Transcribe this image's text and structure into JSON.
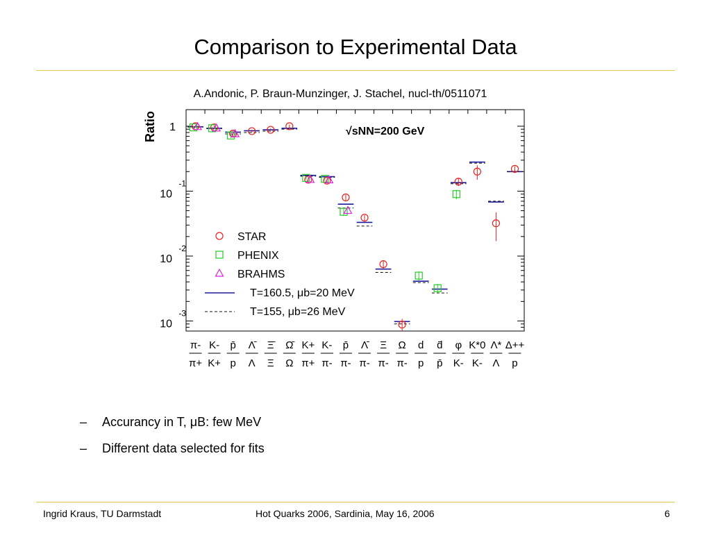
{
  "slide": {
    "title": "Comparison to Experimental Data",
    "citation": "A.Andonic, P. Braun-Munzinger, J. Stachel, nucl-th/0511071",
    "bullets": [
      {
        "dash": "–",
        "text": "Accurancy in T, μB: few MeV"
      },
      {
        "dash": "–",
        "text": "Different data selected for fits"
      }
    ]
  },
  "footer": {
    "author": "Ingrid Kraus, TU Darmstadt",
    "event": "Hot Quarks 2006, Sardinia, May 16, 2006",
    "page": "6"
  },
  "colors": {
    "STAR": "#e8201f",
    "PHENIX": "#22cc22",
    "BRAHMS": "#dd22dd",
    "fit_solid": "#1a1a9c",
    "fit_dashed": "#111111",
    "rule": "#e8c84a"
  },
  "chart_data": {
    "type": "scatter",
    "ylabel": "Ratio",
    "yscale": "log",
    "ylim": [
      0.0007,
      1.8
    ],
    "y_ticks": [
      {
        "base": "1",
        "exp": ""
      },
      {
        "base": "10",
        "exp": "-1"
      },
      {
        "base": "10",
        "exp": "-2"
      },
      {
        "base": "10",
        "exp": "-3"
      }
    ],
    "annotation": "√sNN=200 GeV",
    "grid": false,
    "legend_position": "bottom-left",
    "legend": [
      {
        "label": "STAR",
        "marker": "circle"
      },
      {
        "label": "PHENIX",
        "marker": "square"
      },
      {
        "label": "BRAHMS",
        "marker": "triangle"
      },
      {
        "label": "T=160.5, μb=20 MeV",
        "line": "solid"
      },
      {
        "label": "T=155, μb=26 MeV",
        "line": "dashed"
      }
    ],
    "categories": [
      {
        "num": "π-",
        "den": "π+"
      },
      {
        "num": "K-",
        "den": "K+"
      },
      {
        "num": "p̄",
        "den": "p"
      },
      {
        "num": "Λ̄",
        "den": "Λ"
      },
      {
        "num": "Ξ̄",
        "den": "Ξ"
      },
      {
        "num": "Ω̄",
        "den": "Ω"
      },
      {
        "num": "K+",
        "den": "π+"
      },
      {
        "num": "K-",
        "den": "π-"
      },
      {
        "num": "p̄",
        "den": "π-"
      },
      {
        "num": "Λ̄",
        "den": "π-"
      },
      {
        "num": "Ξ",
        "den": "π-"
      },
      {
        "num": "Ω",
        "den": "π-"
      },
      {
        "num": "d",
        "den": "p"
      },
      {
        "num": "d̄",
        "den": "p̄"
      },
      {
        "num": "φ",
        "den": "K-"
      },
      {
        "num": "K*0",
        "den": "K-"
      },
      {
        "num": "Λ*",
        "den": "Λ"
      },
      {
        "num": "Δ++",
        "den": "p"
      }
    ],
    "series": [
      {
        "name": "STAR",
        "marker": "circle",
        "values": [
          1.0,
          0.96,
          0.77,
          0.84,
          0.88,
          1.0,
          0.15,
          0.145,
          0.08,
          0.039,
          0.0075,
          0.00088,
          null,
          null,
          0.14,
          0.2,
          0.032,
          0.22
        ],
        "errors": [
          0.04,
          0.06,
          0.08,
          0.04,
          0.05,
          0.06,
          0.015,
          0.014,
          0.008,
          0.004,
          0.001,
          0.0002,
          null,
          null,
          0.02,
          0.05,
          0.015,
          0.02
        ]
      },
      {
        "name": "PHENIX",
        "marker": "square",
        "values": [
          0.96,
          0.93,
          0.72,
          null,
          null,
          null,
          0.16,
          0.155,
          0.048,
          null,
          null,
          null,
          0.005,
          0.0032,
          0.09,
          null,
          null,
          null
        ],
        "errors": [
          0.04,
          0.05,
          0.06,
          null,
          null,
          null,
          0.012,
          0.012,
          0.005,
          null,
          null,
          null,
          0.0008,
          0.0005,
          0.015,
          null,
          null,
          null
        ]
      },
      {
        "name": "BRAHMS",
        "marker": "triangle",
        "values": [
          0.98,
          0.93,
          0.76,
          null,
          null,
          null,
          0.15,
          0.148,
          0.05,
          null,
          null,
          null,
          null,
          null,
          null,
          null,
          null,
          null
        ],
        "errors": [
          null,
          null,
          null,
          null,
          null,
          null,
          null,
          null,
          null,
          null,
          null,
          null,
          null,
          null,
          null,
          null,
          null,
          null
        ]
      }
    ],
    "fit_solid": [
      0.98,
      0.93,
      0.81,
      0.85,
      0.88,
      0.93,
      0.175,
      0.167,
      0.063,
      0.033,
      0.0063,
      0.00098,
      0.0041,
      0.0031,
      0.135,
      0.28,
      0.068,
      0.2
    ],
    "fit_dashed": [
      0.97,
      0.92,
      0.76,
      0.8,
      0.84,
      0.9,
      0.17,
      0.163,
      0.055,
      0.029,
      0.0056,
      0.0009,
      0.0039,
      0.0027,
      0.13,
      0.27,
      0.07,
      0.2
    ]
  }
}
